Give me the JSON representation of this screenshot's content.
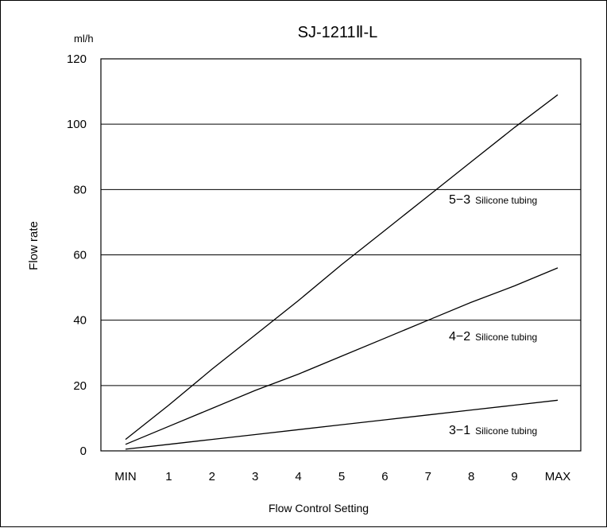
{
  "chart_data": {
    "type": "line",
    "title": "SJ-1211Ⅱ-L",
    "unit_label": "ml/h",
    "ylabel": "Flow rate",
    "xlabel": "Flow Control Setting",
    "categories": [
      "MIN",
      "1",
      "2",
      "3",
      "4",
      "5",
      "6",
      "7",
      "8",
      "9",
      "MAX"
    ],
    "ylim": [
      0,
      120
    ],
    "yticks": [
      0,
      20,
      40,
      60,
      80,
      100,
      120
    ],
    "grid": true,
    "series": [
      {
        "name": "5-3 Silicone tubing",
        "label_num": "5−3",
        "label_text": "Silicone tubing",
        "values": [
          3.5,
          14,
          25,
          35.5,
          46,
          57,
          67.5,
          78,
          88.5,
          99,
          109
        ]
      },
      {
        "name": "4-2 Silicone tubing",
        "label_num": "4−2",
        "label_text": "Silicone tubing",
        "values": [
          2,
          7.5,
          13,
          18.5,
          23.5,
          29,
          34.5,
          40,
          45.5,
          50.5,
          56
        ]
      },
      {
        "name": "3-1 Silicone tubing",
        "label_num": "3−1",
        "label_text": "Silicone tubing",
        "values": [
          0.5,
          2,
          3.5,
          5,
          6.5,
          8,
          9.5,
          11,
          12.5,
          14,
          15.5
        ]
      }
    ]
  }
}
